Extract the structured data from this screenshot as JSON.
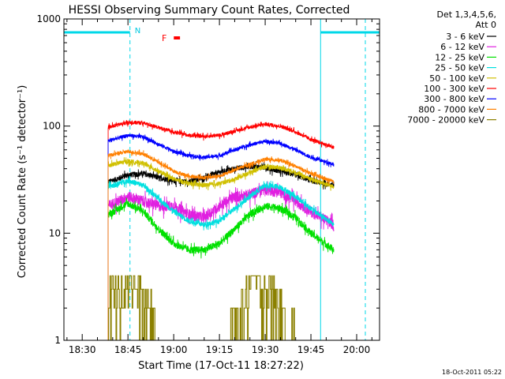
{
  "chart_data": {
    "type": "line",
    "title": "HESSI Observing Summary Count Rates, Corrected",
    "xlabel": "Start Time (17-Oct-11 18:27:22)",
    "ylabel": "Corrected Count Rate (s⁻¹ detector⁻¹)",
    "y_scale": "log",
    "ylim": [
      1,
      1000
    ],
    "xlim": [
      "18:24:00",
      "20:07:30"
    ],
    "x_ticks": [
      "18:30",
      "18:45",
      "19:00",
      "19:15",
      "19:30",
      "19:45",
      "20:00"
    ],
    "y_ticks": [
      "1",
      "10",
      "100",
      "1000"
    ],
    "legend_title": [
      "Det 1,3,4,5,6,",
      "Att 0"
    ],
    "legend_position": "right",
    "timestamp": "18-Oct-2011 05:22",
    "annotations": {
      "night_label": "N",
      "flare_label": "F",
      "night_intervals": [
        [
          "18:24:00",
          "18:45:40"
        ],
        [
          "19:48:10",
          "20:07:30"
        ]
      ],
      "flare_bar": [
        "18:59:00",
        "19:00:00"
      ]
    },
    "series": [
      {
        "name": "3 - 6 keV",
        "color": "#000000",
        "noise": 0.06,
        "points": [
          [
            "18:38:30",
            30
          ],
          [
            "18:45",
            35
          ],
          [
            "18:50",
            36
          ],
          [
            "18:55",
            33
          ],
          [
            "19:00",
            31
          ],
          [
            "19:05",
            30
          ],
          [
            "19:10",
            33
          ],
          [
            "19:15",
            37
          ],
          [
            "19:20",
            40
          ],
          [
            "19:25",
            42
          ],
          [
            "19:30",
            41
          ],
          [
            "19:35",
            38
          ],
          [
            "19:40",
            35
          ],
          [
            "19:45",
            31
          ],
          [
            "19:52:30",
            28
          ]
        ]
      },
      {
        "name": "6 - 12 keV",
        "color": "#e020e0",
        "noise": 0.12,
        "points": [
          [
            "18:38:30",
            18
          ],
          [
            "18:45",
            22
          ],
          [
            "18:50",
            20
          ],
          [
            "18:55",
            18
          ],
          [
            "19:00",
            18
          ],
          [
            "19:05",
            15
          ],
          [
            "19:10",
            14
          ],
          [
            "19:15",
            18
          ],
          [
            "19:20",
            22
          ],
          [
            "19:25",
            23
          ],
          [
            "19:30",
            26
          ],
          [
            "19:35",
            24
          ],
          [
            "19:40",
            20
          ],
          [
            "19:45",
            16
          ],
          [
            "19:52:30",
            12
          ]
        ]
      },
      {
        "name": "12 - 25 keV",
        "color": "#00e000",
        "noise": 0.08,
        "points": [
          [
            "18:38:30",
            15
          ],
          [
            "18:45",
            19
          ],
          [
            "18:50",
            16
          ],
          [
            "18:55",
            11
          ],
          [
            "19:00",
            8
          ],
          [
            "19:05",
            7
          ],
          [
            "19:10",
            7
          ],
          [
            "19:15",
            8
          ],
          [
            "19:20",
            11
          ],
          [
            "19:25",
            15
          ],
          [
            "19:30",
            18
          ],
          [
            "19:35",
            17
          ],
          [
            "19:40",
            14
          ],
          [
            "19:45",
            10
          ],
          [
            "19:52:30",
            7
          ]
        ]
      },
      {
        "name": "25 - 50 keV",
        "color": "#00e0e0",
        "noise": 0.06,
        "points": [
          [
            "18:38:30",
            27
          ],
          [
            "18:45",
            31
          ],
          [
            "18:50",
            28
          ],
          [
            "18:55",
            21
          ],
          [
            "19:00",
            16
          ],
          [
            "19:05",
            13
          ],
          [
            "19:10",
            12
          ],
          [
            "19:15",
            13
          ],
          [
            "19:20",
            17
          ],
          [
            "19:25",
            22
          ],
          [
            "19:30",
            28
          ],
          [
            "19:35",
            27
          ],
          [
            "19:40",
            22
          ],
          [
            "19:45",
            17
          ],
          [
            "19:52:30",
            12
          ]
        ]
      },
      {
        "name": "50 - 100 keV",
        "color": "#d0c000",
        "noise": 0.05,
        "points": [
          [
            "18:38:30",
            43
          ],
          [
            "18:45",
            47
          ],
          [
            "18:50",
            45
          ],
          [
            "18:55",
            38
          ],
          [
            "19:00",
            32
          ],
          [
            "19:05",
            29
          ],
          [
            "19:10",
            28
          ],
          [
            "19:15",
            29
          ],
          [
            "19:20",
            32
          ],
          [
            "19:25",
            37
          ],
          [
            "19:30",
            42
          ],
          [
            "19:35",
            41
          ],
          [
            "19:40",
            37
          ],
          [
            "19:45",
            32
          ],
          [
            "19:52:30",
            27
          ]
        ]
      },
      {
        "name": "100 - 300 keV",
        "color": "#ff0000",
        "noise": 0.04,
        "points": [
          [
            "18:38:30",
            98
          ],
          [
            "18:45",
            108
          ],
          [
            "18:50",
            107
          ],
          [
            "18:55",
            97
          ],
          [
            "19:00",
            88
          ],
          [
            "19:05",
            82
          ],
          [
            "19:10",
            80
          ],
          [
            "19:15",
            82
          ],
          [
            "19:20",
            90
          ],
          [
            "19:25",
            98
          ],
          [
            "19:30",
            104
          ],
          [
            "19:35",
            100
          ],
          [
            "19:40",
            88
          ],
          [
            "19:45",
            75
          ],
          [
            "19:52:30",
            63
          ]
        ]
      },
      {
        "name": "300 - 800 keV",
        "color": "#0000ff",
        "noise": 0.04,
        "points": [
          [
            "18:38:30",
            73
          ],
          [
            "18:45",
            82
          ],
          [
            "18:50",
            79
          ],
          [
            "18:55",
            68
          ],
          [
            "19:00",
            58
          ],
          [
            "19:05",
            53
          ],
          [
            "19:10",
            51
          ],
          [
            "19:15",
            53
          ],
          [
            "19:20",
            60
          ],
          [
            "19:25",
            67
          ],
          [
            "19:30",
            72
          ],
          [
            "19:35",
            69
          ],
          [
            "19:40",
            60
          ],
          [
            "19:45",
            51
          ],
          [
            "19:52:30",
            44
          ]
        ]
      },
      {
        "name": "800 - 7000 keV",
        "color": "#ff8000",
        "noise": 0.04,
        "points": [
          [
            "18:38:30",
            53
          ],
          [
            "18:45",
            58
          ],
          [
            "18:50",
            55
          ],
          [
            "18:55",
            46
          ],
          [
            "19:00",
            38
          ],
          [
            "19:05",
            34
          ],
          [
            "19:10",
            33
          ],
          [
            "19:15",
            34
          ],
          [
            "19:20",
            39
          ],
          [
            "19:25",
            44
          ],
          [
            "19:30",
            49
          ],
          [
            "19:35",
            48
          ],
          [
            "19:40",
            42
          ],
          [
            "19:45",
            36
          ],
          [
            "19:52:30",
            30
          ]
        ]
      },
      {
        "name": "7000 - 20000 keV",
        "color": "#8b8000",
        "noise": 0,
        "points": [
          [
            "18:38:00",
            1
          ],
          [
            "18:39",
            2.5
          ],
          [
            "18:42",
            3.5
          ],
          [
            "18:45",
            4
          ],
          [
            "18:48",
            3
          ],
          [
            "18:51",
            2
          ],
          [
            "18:53",
            1.5
          ],
          [
            "18:55",
            1
          ],
          [
            "19:18",
            1
          ],
          [
            "19:22",
            2
          ],
          [
            "19:26",
            3.5
          ],
          [
            "19:30",
            3
          ],
          [
            "19:33",
            2.5
          ],
          [
            "19:36",
            1.5
          ],
          [
            "19:40",
            1
          ],
          [
            "19:52:30",
            1
          ]
        ]
      }
    ]
  }
}
